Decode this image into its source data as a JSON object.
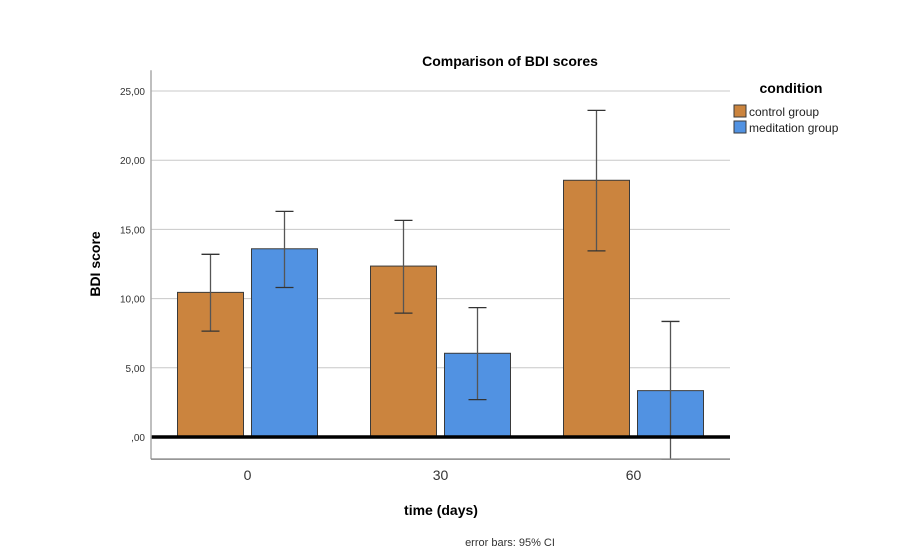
{
  "chart_data": {
    "type": "bar",
    "title": "Comparison of BDI scores",
    "xlabel": "time (days)",
    "ylabel": "BDI score",
    "categories": [
      "0",
      "30",
      "60"
    ],
    "ylim": [
      -1.6,
      26.5
    ],
    "yticks": [
      0,
      5,
      10,
      15,
      20,
      25
    ],
    "ytick_labels": [
      ",00",
      "5,00",
      "10,00",
      "15,00",
      "20,00",
      "25,00"
    ],
    "grid": true,
    "legend": {
      "title": "condition",
      "position": "top-right"
    },
    "series": [
      {
        "name": "control group",
        "color": "#CB843E",
        "values": [
          10.45,
          12.35,
          18.55
        ],
        "ci_low": [
          7.65,
          8.95,
          13.45
        ],
        "ci_high": [
          13.2,
          15.65,
          23.6
        ]
      },
      {
        "name": "meditation group",
        "color": "#5192E2",
        "values": [
          13.6,
          6.05,
          3.35
        ],
        "ci_low": [
          10.8,
          2.7,
          -1.6
        ],
        "ci_high": [
          16.3,
          9.35,
          8.35
        ]
      }
    ],
    "note": "error bars: 95% CI"
  }
}
